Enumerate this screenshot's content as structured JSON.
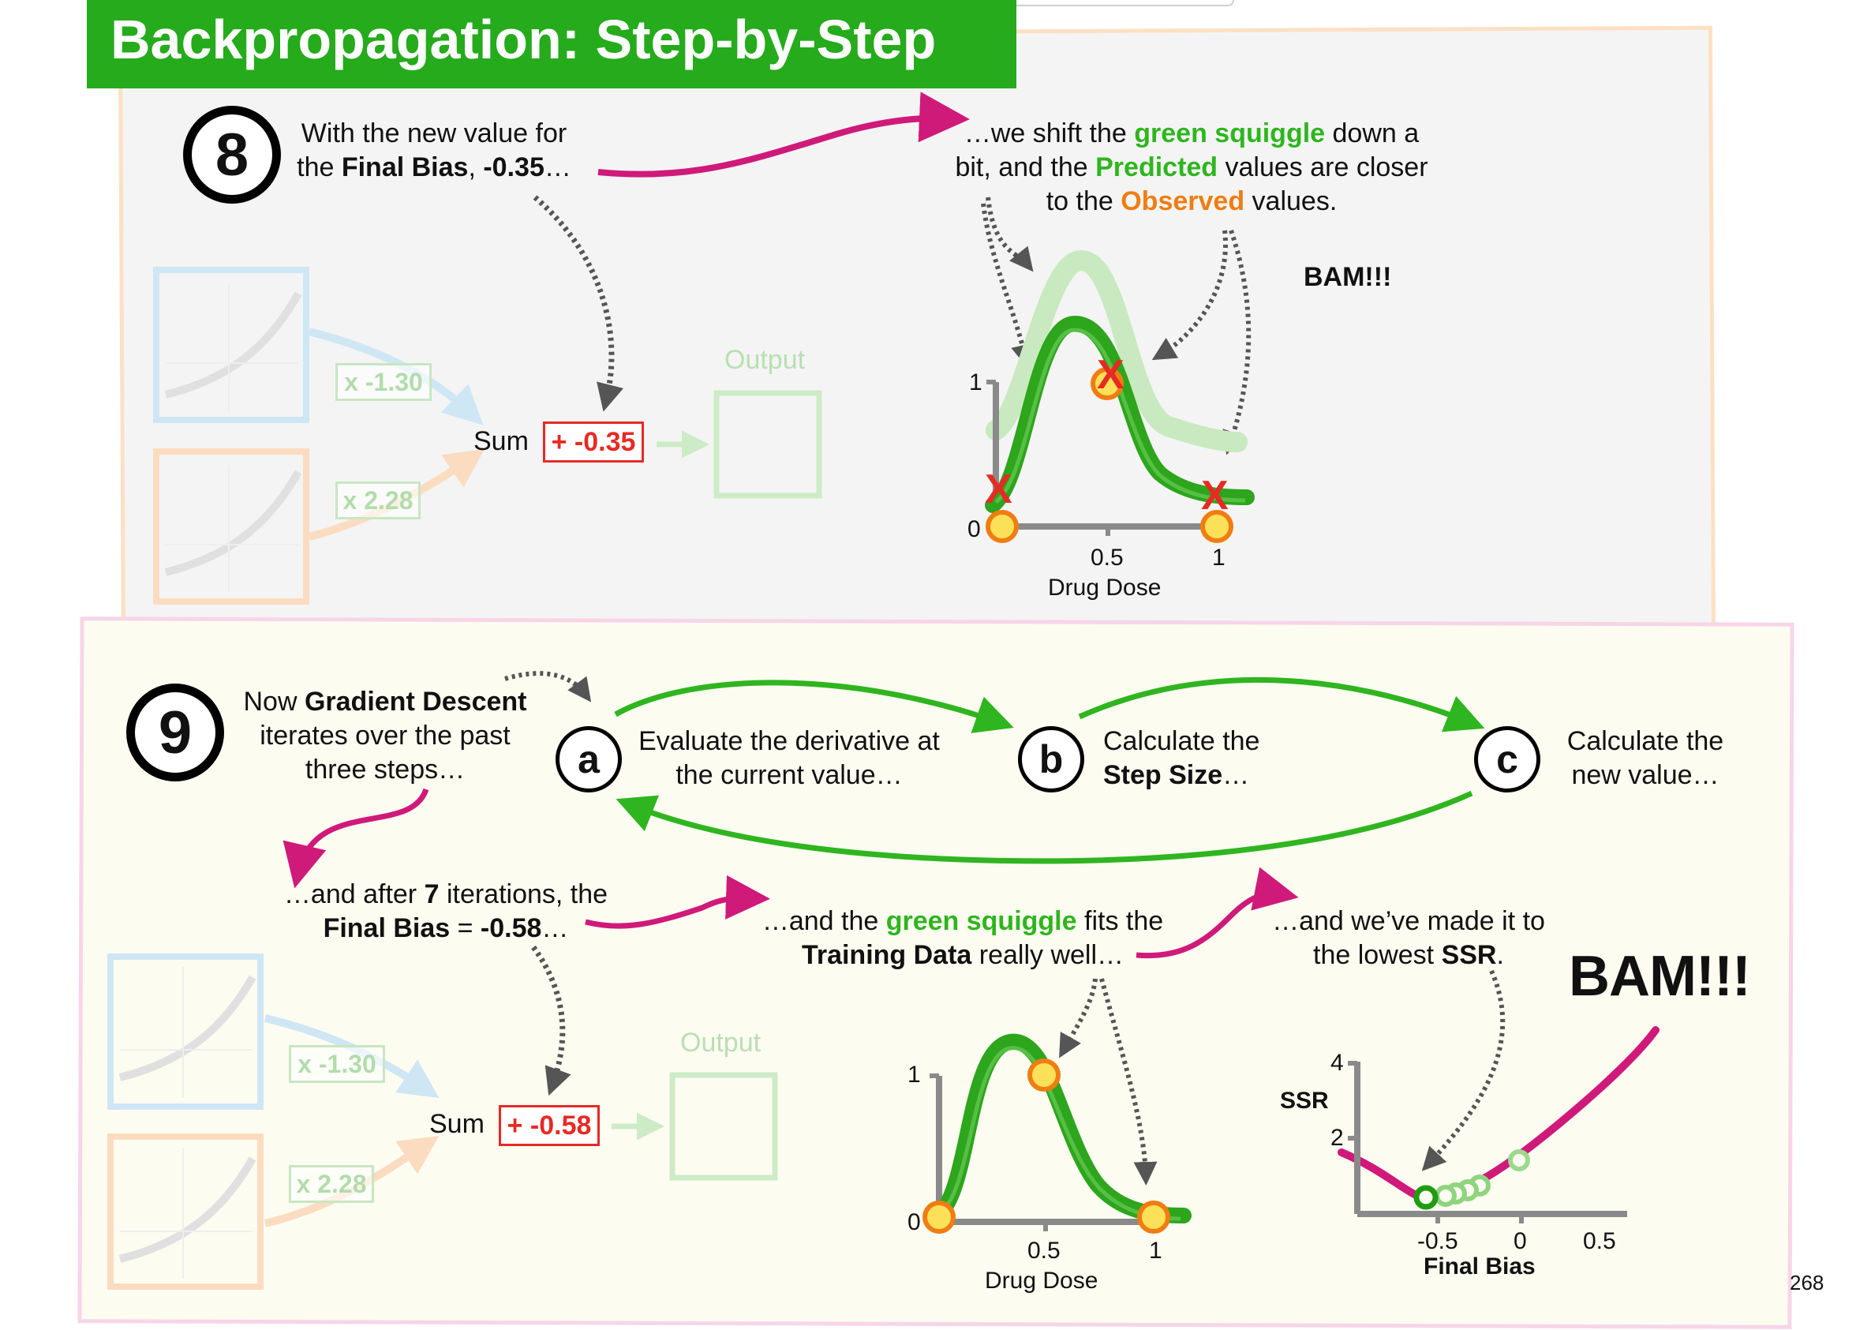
{
  "header": {
    "title": "Backpropagation: Step-by-Step"
  },
  "step8": {
    "number": "8",
    "intro_line1": "With the new value for",
    "intro_line2_pre": "the ",
    "intro_bold": "Final Bias",
    "intro_sep": ", ",
    "intro_value": "-0.35",
    "intro_ellipsis": "…",
    "shift_l1_pre": "…we shift the ",
    "shift_l1_green": "green squiggle",
    "shift_l1_post": " down a",
    "shift_l2_pre": "bit, and the ",
    "shift_l2_green": "Predicted",
    "shift_l2_post": " values are closer",
    "shift_l3_pre": "to the ",
    "shift_l3_orange": "Observed",
    "shift_l3_post": " values.",
    "bam": "BAM!!!",
    "sum_label": "Sum",
    "sum_value": "+ -0.35",
    "output_label": "Output",
    "weight_top": "x -1.30",
    "weight_bottom": "x 2.28",
    "chart": {
      "y_tick_1": "1",
      "y_tick_0": "0",
      "x_tick_mid": "0.5",
      "x_tick_end": "1",
      "xlabel": "Drug Dose",
      "x_mark": "X"
    }
  },
  "step9": {
    "number": "9",
    "intro_pre": "Now ",
    "intro_bold": "Gradient Descent",
    "intro_line2": "iterates over the past",
    "intro_line3": "three steps…",
    "a_letter": "a",
    "a_line1": "Evaluate the derivative at",
    "a_line2": "the current value…",
    "b_letter": "b",
    "b_line1": "Calculate the",
    "b_bold": "Step Size",
    "b_ellipsis": "…",
    "c_letter": "c",
    "c_line1": "Calculate the",
    "c_line2": "new value…",
    "after_pre": "…and after ",
    "after_bold": "7",
    "after_post": " iterations, the",
    "final_bold": "Final Bias",
    "final_eq": " = ",
    "final_value": "-0.58",
    "final_ellipsis": "…",
    "fits_pre": "…and the ",
    "fits_green": "green squiggle",
    "fits_post": " fits the",
    "fits_bold": "Training Data",
    "fits_post2": " really well…",
    "lowest_line1": "…and we’ve made it to",
    "lowest_pre": "the lowest ",
    "lowest_bold": "SSR",
    "lowest_post": ".",
    "bam": "BAM!!!",
    "sum_label": "Sum",
    "sum_value": "+ -0.58",
    "output_label": "Output",
    "weight_top": "x -1.30",
    "weight_bottom": "x 2.28",
    "dose_chart": {
      "y_tick_1": "1",
      "y_tick_0": "0",
      "x_tick_mid": "0.5",
      "x_tick_end": "1",
      "xlabel": "Drug Dose"
    },
    "ssr_chart": {
      "ylabel": "SSR",
      "y_tick_4": "4",
      "y_tick_2": "2",
      "x_ticks": [
        "-0.5",
        "0",
        "0.5"
      ],
      "xlabel": "Final Bias"
    }
  },
  "page_number": "268",
  "colors": {
    "title_bg": "#25ab1c",
    "green": "#2fb51f",
    "magenta": "#cf1a7a",
    "orange": "#ef7d12",
    "red": "#e62a24"
  }
}
